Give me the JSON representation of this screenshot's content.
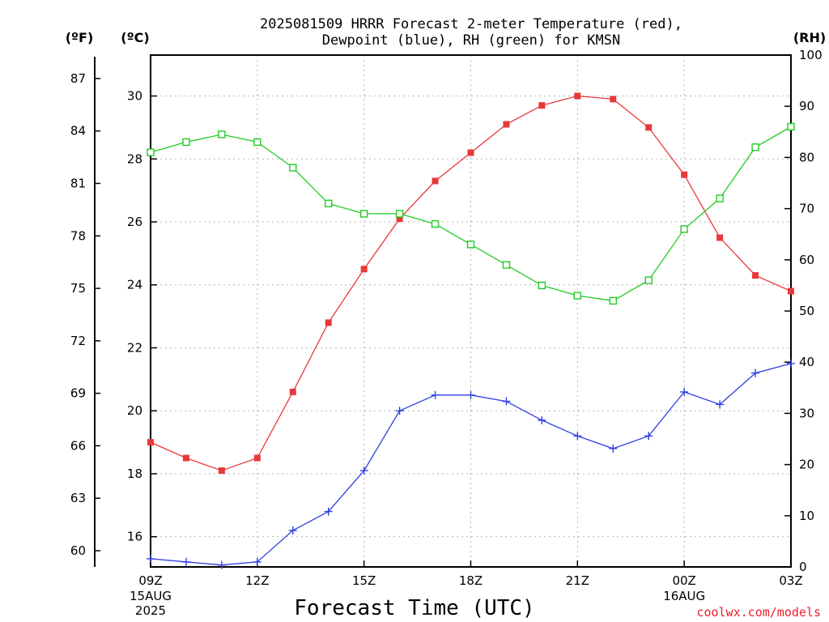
{
  "chart_data": {
    "type": "line",
    "title_line1": "2025081509 HRRR Forecast 2-meter Temperature (red),",
    "title_line2": "Dewpoint (blue), RH (green) for KMSN",
    "xlabel": "Forecast Time (UTC)",
    "credit": "coolwx.com/models",
    "x_hours": [
      0,
      1,
      2,
      3,
      4,
      5,
      6,
      7,
      8,
      9,
      10,
      11,
      12,
      13,
      14,
      15,
      16,
      17,
      18
    ],
    "x_ticks": [
      {
        "hour": 0,
        "label": "09Z",
        "sub1": "15AUG",
        "sub2": "2025"
      },
      {
        "hour": 3,
        "label": "12Z"
      },
      {
        "hour": 6,
        "label": "15Z"
      },
      {
        "hour": 9,
        "label": "18Z"
      },
      {
        "hour": 12,
        "label": "21Z"
      },
      {
        "hour": 15,
        "label": "00Z",
        "sub1": "16AUG"
      },
      {
        "hour": 18,
        "label": "03Z"
      }
    ],
    "xlim": [
      0,
      18
    ],
    "ylim_c": [
      15.04,
      31.3
    ],
    "ylim_rh": [
      0,
      100
    ],
    "left_f_unit": "(ºF)",
    "left_c_unit": "(ºC)",
    "right_unit": "(RH)",
    "f_ticks": [
      "60",
      "63",
      "66",
      "69",
      "72",
      "75",
      "78",
      "81",
      "84",
      "87"
    ],
    "c_ticks": [
      "16",
      "18",
      "20",
      "22",
      "24",
      "26",
      "28",
      "30"
    ],
    "rh_ticks": [
      "0",
      "10",
      "20",
      "30",
      "40",
      "50",
      "60",
      "70",
      "80",
      "90",
      "100"
    ],
    "grid": true,
    "series": [
      {
        "key": "temperature",
        "color": "#e8383a",
        "marker": "filled-square",
        "values": [
          19.0,
          18.5,
          18.1,
          18.5,
          20.6,
          22.8,
          24.5,
          26.1,
          27.3,
          28.2,
          29.1,
          29.7,
          30.0,
          29.9,
          29.0,
          27.5,
          25.5,
          24.3,
          23.8
        ]
      },
      {
        "key": "dewpoint",
        "color": "#2f3fe0",
        "marker": "plus",
        "values": [
          15.3,
          15.2,
          15.1,
          15.2,
          16.2,
          16.8,
          18.1,
          20.0,
          20.5,
          20.5,
          20.3,
          19.7,
          19.2,
          18.8,
          19.2,
          20.6,
          20.2,
          21.2,
          21.5
        ]
      },
      {
        "key": "rh",
        "color": "#22cc22",
        "marker": "open-square",
        "values": [
          81,
          83,
          84.5,
          83,
          78,
          71,
          69,
          69,
          67,
          63,
          59,
          55,
          53,
          52,
          56,
          66,
          72,
          82,
          86
        ]
      }
    ]
  }
}
